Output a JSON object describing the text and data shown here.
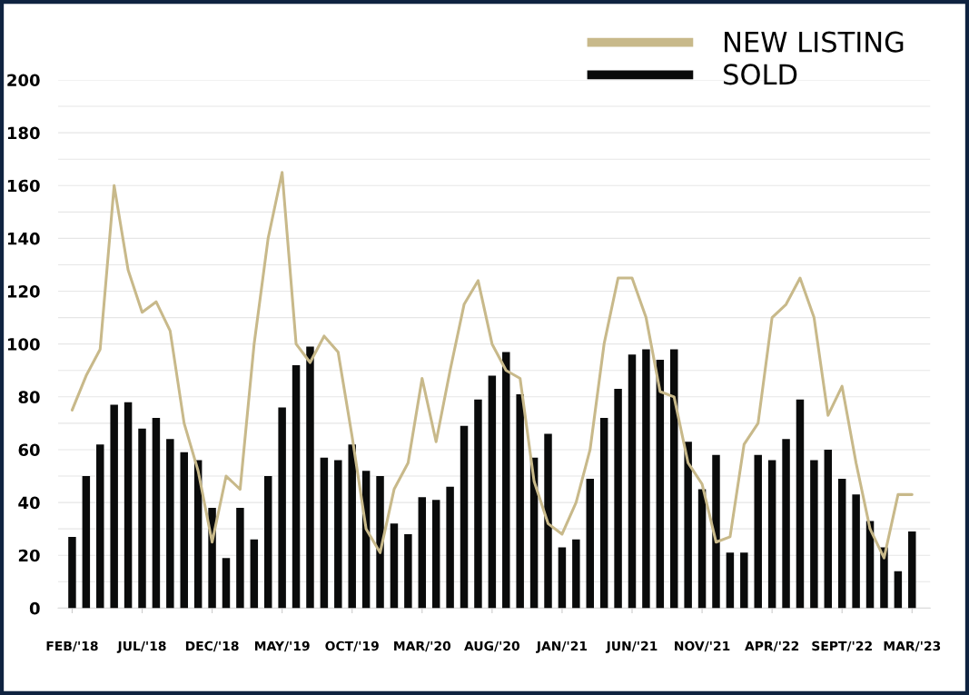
{
  "chart_data": {
    "type": "bar",
    "categories": [
      "FEB/'18",
      null,
      null,
      null,
      null,
      "JUL/'18",
      null,
      null,
      null,
      null,
      "DEC/'18",
      null,
      null,
      null,
      null,
      "MAY/'19",
      null,
      null,
      null,
      null,
      "OCT/'19",
      null,
      null,
      null,
      null,
      "MAR/'20",
      null,
      null,
      null,
      null,
      "AUG/'20",
      null,
      null,
      null,
      null,
      "JAN/'21",
      null,
      null,
      null,
      null,
      "JUN/'21",
      null,
      null,
      null,
      null,
      "NOV/'21",
      null,
      null,
      null,
      null,
      "APR/'22",
      null,
      null,
      null,
      null,
      "SEPT/'22",
      null,
      null,
      null,
      null,
      "MAR/'23"
    ],
    "series": [
      {
        "name": "NEW LISTING",
        "type": "line",
        "color": "#c8b98a",
        "values": [
          75,
          88,
          98,
          160,
          128,
          112,
          116,
          105,
          70,
          52,
          25,
          50,
          45,
          100,
          140,
          165,
          100,
          93,
          103,
          97,
          65,
          30,
          21,
          45,
          55,
          87,
          63,
          90,
          115,
          124,
          100,
          90,
          87,
          48,
          32,
          28,
          40,
          60,
          100,
          125,
          125,
          110,
          82,
          80,
          55,
          47,
          25,
          27,
          62,
          70,
          110,
          115,
          125,
          110,
          73,
          84,
          55,
          30,
          19,
          43,
          43
        ]
      },
      {
        "name": "SOLD",
        "color": "#0a0b0b",
        "values": [
          27,
          50,
          62,
          77,
          78,
          68,
          72,
          64,
          59,
          56,
          38,
          19,
          38,
          26,
          50,
          76,
          92,
          99,
          57,
          56,
          62,
          52,
          50,
          32,
          28,
          42,
          41,
          46,
          69,
          79,
          88,
          97,
          81,
          57,
          66,
          23,
          26,
          49,
          72,
          83,
          96,
          98,
          94,
          98,
          63,
          45,
          58,
          21,
          21,
          58,
          56,
          64,
          79,
          56,
          60,
          49,
          43,
          33,
          23,
          14,
          29
        ]
      }
    ],
    "ylim": [
      0,
      200
    ],
    "yticks": [
      0,
      {
        "value": 10,
        "label": null
      },
      20,
      {
        "value": 30,
        "label": null
      },
      40,
      {
        "value": 50,
        "label": null
      },
      60,
      {
        "value": 70,
        "label": null
      },
      80,
      {
        "value": 90,
        "label": null
      },
      100,
      {
        "value": 110,
        "label": null
      },
      120,
      {
        "value": 130,
        "label": null
      },
      140,
      {
        "value": 150,
        "label": null
      },
      160,
      {
        "value": 170,
        "label": null
      },
      180,
      {
        "value": 190,
        "label": null
      },
      200
    ],
    "grid": "y",
    "legend": "top right"
  }
}
